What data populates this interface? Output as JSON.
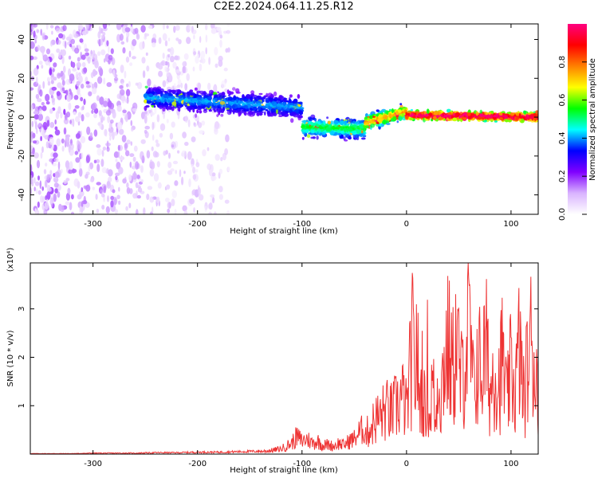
{
  "title": "C2E2.2024.064.11.25.R12",
  "chart_data": [
    {
      "type": "heatmap",
      "xlabel": "Height of straight line (km)",
      "ylabel": "Frequency (Hz)",
      "xlim": [
        -360,
        126
      ],
      "ylim": [
        -50,
        48
      ],
      "xticks": [
        -300,
        -200,
        -100,
        0,
        100
      ],
      "yticks": [
        -40,
        -20,
        0,
        20,
        40
      ],
      "grid": false,
      "colorbar": {
        "label": "Normalized spectral amplitude",
        "range": [
          0,
          1
        ],
        "ticks": [
          0.0,
          0.2,
          0.4,
          0.6,
          0.8
        ],
        "tick_labels": [
          "0.0",
          "0.2",
          "0.4",
          "0.6",
          "0.8"
        ],
        "colormap": [
          "#ffffff",
          "#d9b3ff",
          "#8000ff",
          "#0000ff",
          "#00ffff",
          "#00ff00",
          "#ffff00",
          "#ff8000",
          "#ff0000",
          "#ff0080"
        ]
      },
      "features": [
        {
          "region": "scattered noise",
          "x_range": [
            -360,
            -170
          ],
          "y_range": [
            -50,
            48
          ],
          "amplitude": 0.15
        },
        {
          "region": "signal band",
          "x_range": [
            -250,
            -100
          ],
          "frequency_center": [
            10,
            5
          ],
          "frequency_spread": 8,
          "amplitude": 0.3
        },
        {
          "region": "signal band",
          "x_range": [
            -100,
            -40
          ],
          "frequency_center": [
            -5,
            -6
          ],
          "frequency_spread": 7,
          "amplitude": 0.4
        },
        {
          "region": "signal band",
          "x_range": [
            -40,
            0
          ],
          "frequency_center": [
            -3,
            3
          ],
          "frequency_spread": 5,
          "amplitude": 0.55
        },
        {
          "region": "signal band",
          "x_range": [
            0,
            126
          ],
          "frequency_center": [
            1,
            0
          ],
          "frequency_spread": 3,
          "amplitude": 0.75
        }
      ]
    },
    {
      "type": "line",
      "xlabel": "Height of straight line (km)",
      "ylabel": "SNR (10 * v/v)",
      "y_multiplier": "(x10⁴)",
      "xlim": [
        -360,
        126
      ],
      "ylim": [
        0,
        3.95
      ],
      "xticks": [
        -300,
        -200,
        -100,
        0,
        100
      ],
      "yticks": [
        1,
        2,
        3
      ],
      "grid": false,
      "series_color": "#ee3333",
      "x": [
        -360,
        -340,
        -320,
        -300,
        -280,
        -260,
        -240,
        -220,
        -200,
        -180,
        -160,
        -140,
        -130,
        -120,
        -110,
        -105,
        -100,
        -95,
        -90,
        -85,
        -80,
        -75,
        -70,
        -65,
        -60,
        -55,
        -50,
        -45,
        -40,
        -35,
        -30,
        -25,
        -20,
        -15,
        -10,
        -8,
        -5,
        -2,
        0,
        3,
        6,
        8,
        10,
        12,
        15,
        18,
        20,
        22,
        25,
        28,
        30,
        33,
        36,
        40,
        44,
        48,
        52,
        56,
        60,
        64,
        68,
        72,
        76,
        80,
        84,
        88,
        92,
        96,
        100,
        104,
        108,
        112,
        116,
        120,
        124,
        126
      ],
      "values": [
        0.01,
        0.01,
        0.01,
        0.02,
        0.02,
        0.02,
        0.03,
        0.03,
        0.04,
        0.04,
        0.05,
        0.06,
        0.08,
        0.12,
        0.25,
        0.4,
        0.3,
        0.35,
        0.25,
        0.3,
        0.2,
        0.22,
        0.18,
        0.25,
        0.2,
        0.3,
        0.35,
        0.5,
        0.6,
        0.8,
        1.1,
        1.2,
        1.4,
        1.3,
        1.5,
        1.6,
        1.8,
        1.7,
        1.3,
        2.4,
        3.5,
        2.2,
        3.8,
        1.5,
        2.5,
        1.2,
        2.9,
        1.0,
        2.4,
        0.8,
        2.8,
        1.8,
        3.0,
        3.4,
        2.6,
        3.7,
        2.2,
        3.2,
        3.9,
        2.0,
        3.0,
        2.6,
        3.4,
        1.9,
        2.9,
        2.2,
        3.1,
        1.6,
        2.7,
        2.0,
        3.4,
        1.8,
        2.8,
        3.7,
        2.3,
        2.6
      ]
    }
  ]
}
